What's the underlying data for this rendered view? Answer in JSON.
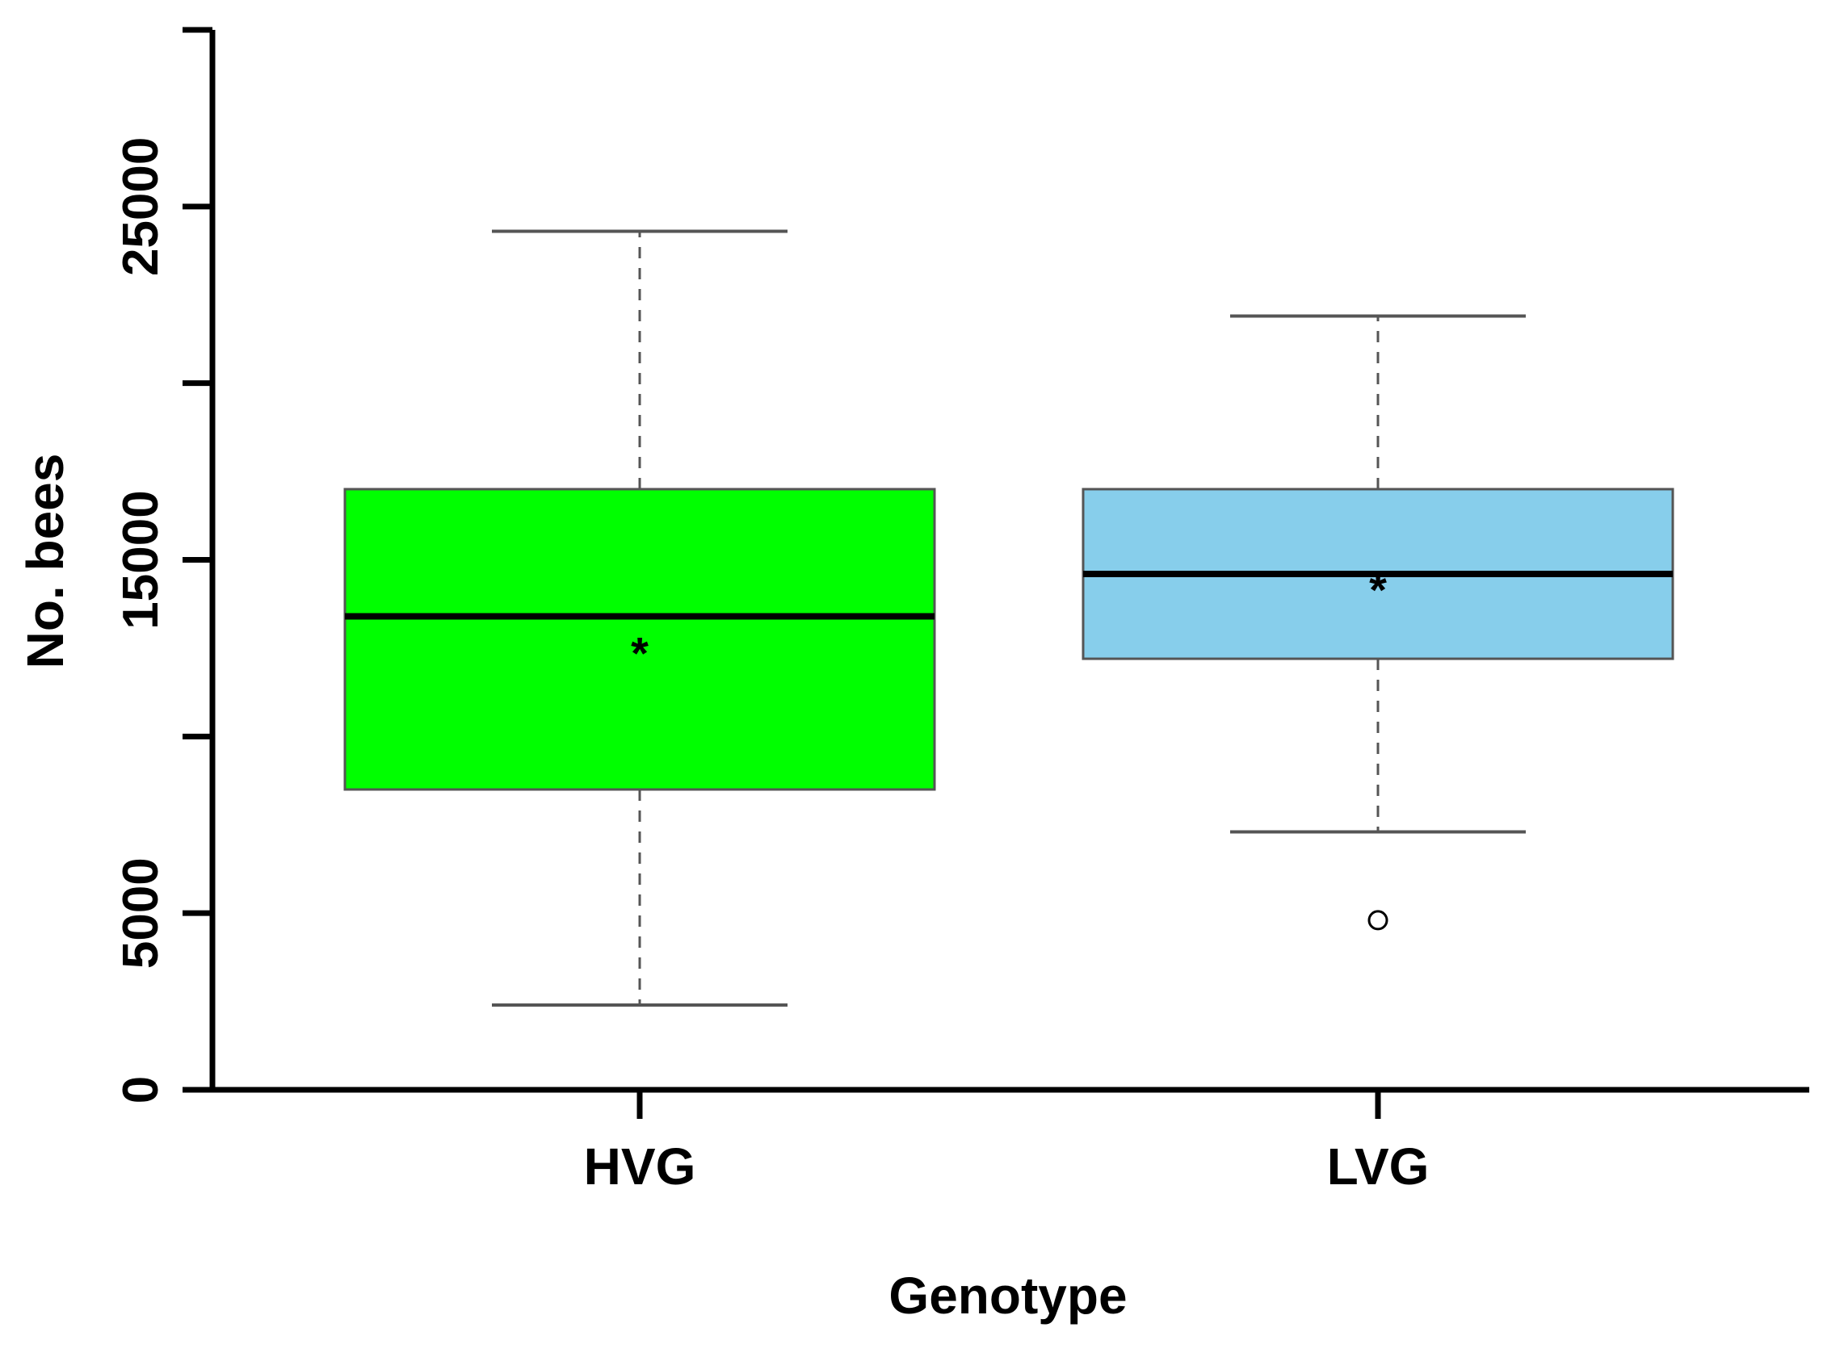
{
  "chart_data": {
    "type": "boxplot",
    "title": "",
    "xlabel": "Genotype",
    "ylabel": "No. bees",
    "ylim": [
      0,
      30000
    ],
    "y_ticks": [
      0,
      5000,
      10000,
      15000,
      20000,
      25000,
      30000
    ],
    "y_tick_labels": [
      {
        "value": 0,
        "label": "0"
      },
      {
        "value": 5000,
        "label": "5000"
      },
      {
        "value": 15000,
        "label": "15000"
      },
      {
        "value": 25000,
        "label": "25000"
      }
    ],
    "categories": [
      "HVG",
      "LVG"
    ],
    "series": [
      {
        "name": "HVG",
        "color": "#00ff00",
        "whisker_low": 2400,
        "q1": 8500,
        "median": 13400,
        "q3": 17000,
        "whisker_high": 24300,
        "mean": 12600,
        "outliers": []
      },
      {
        "name": "LVG",
        "color": "#87ceeb",
        "whisker_low": 7300,
        "q1": 12200,
        "median": 14600,
        "q3": 17000,
        "whisker_high": 21900,
        "mean": 14400,
        "outliers": [
          4800
        ]
      }
    ]
  }
}
